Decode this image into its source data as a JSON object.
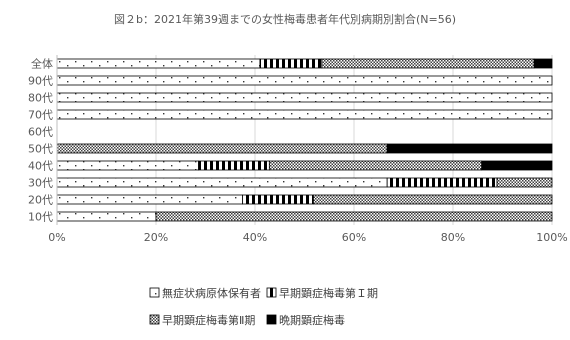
{
  "chart_data": {
    "type": "bar",
    "orientation": "horizontal",
    "stacked": "percent",
    "title": "図２b：2021年第39週までの女性梅毒患者年代別病期別割合(N=56)",
    "categories": [
      "全体",
      "90代",
      "80代",
      "70代",
      "60代",
      "50代",
      "40代",
      "30代",
      "20代",
      "10代"
    ],
    "xlim": [
      0,
      100
    ],
    "xticks": [
      "0%",
      "20%",
      "40%",
      "60%",
      "80%",
      "100%"
    ],
    "grid": true,
    "legend_position": "bottom",
    "series": [
      {
        "name": "無症状病原体保有者",
        "pattern": "dots",
        "values": [
          41,
          100,
          100,
          100,
          0,
          0,
          28.6,
          66.7,
          37.5,
          20
        ]
      },
      {
        "name": "早期顕症梅毒第Ｉ期",
        "pattern": "stripes",
        "values": [
          12.5,
          0,
          0,
          0,
          0,
          0,
          14.3,
          22.2,
          14.3,
          0
        ]
      },
      {
        "name": "早期顕症梅毒第Ⅱ期",
        "pattern": "checker",
        "values": [
          42.9,
          0,
          0,
          0,
          0,
          66.7,
          42.9,
          11.1,
          48.2,
          80
        ]
      },
      {
        "name": "晩期顕症梅毒",
        "pattern": "solid",
        "values": [
          3.6,
          0,
          0,
          0,
          0,
          33.3,
          14.2,
          0,
          0,
          0
        ]
      }
    ]
  }
}
